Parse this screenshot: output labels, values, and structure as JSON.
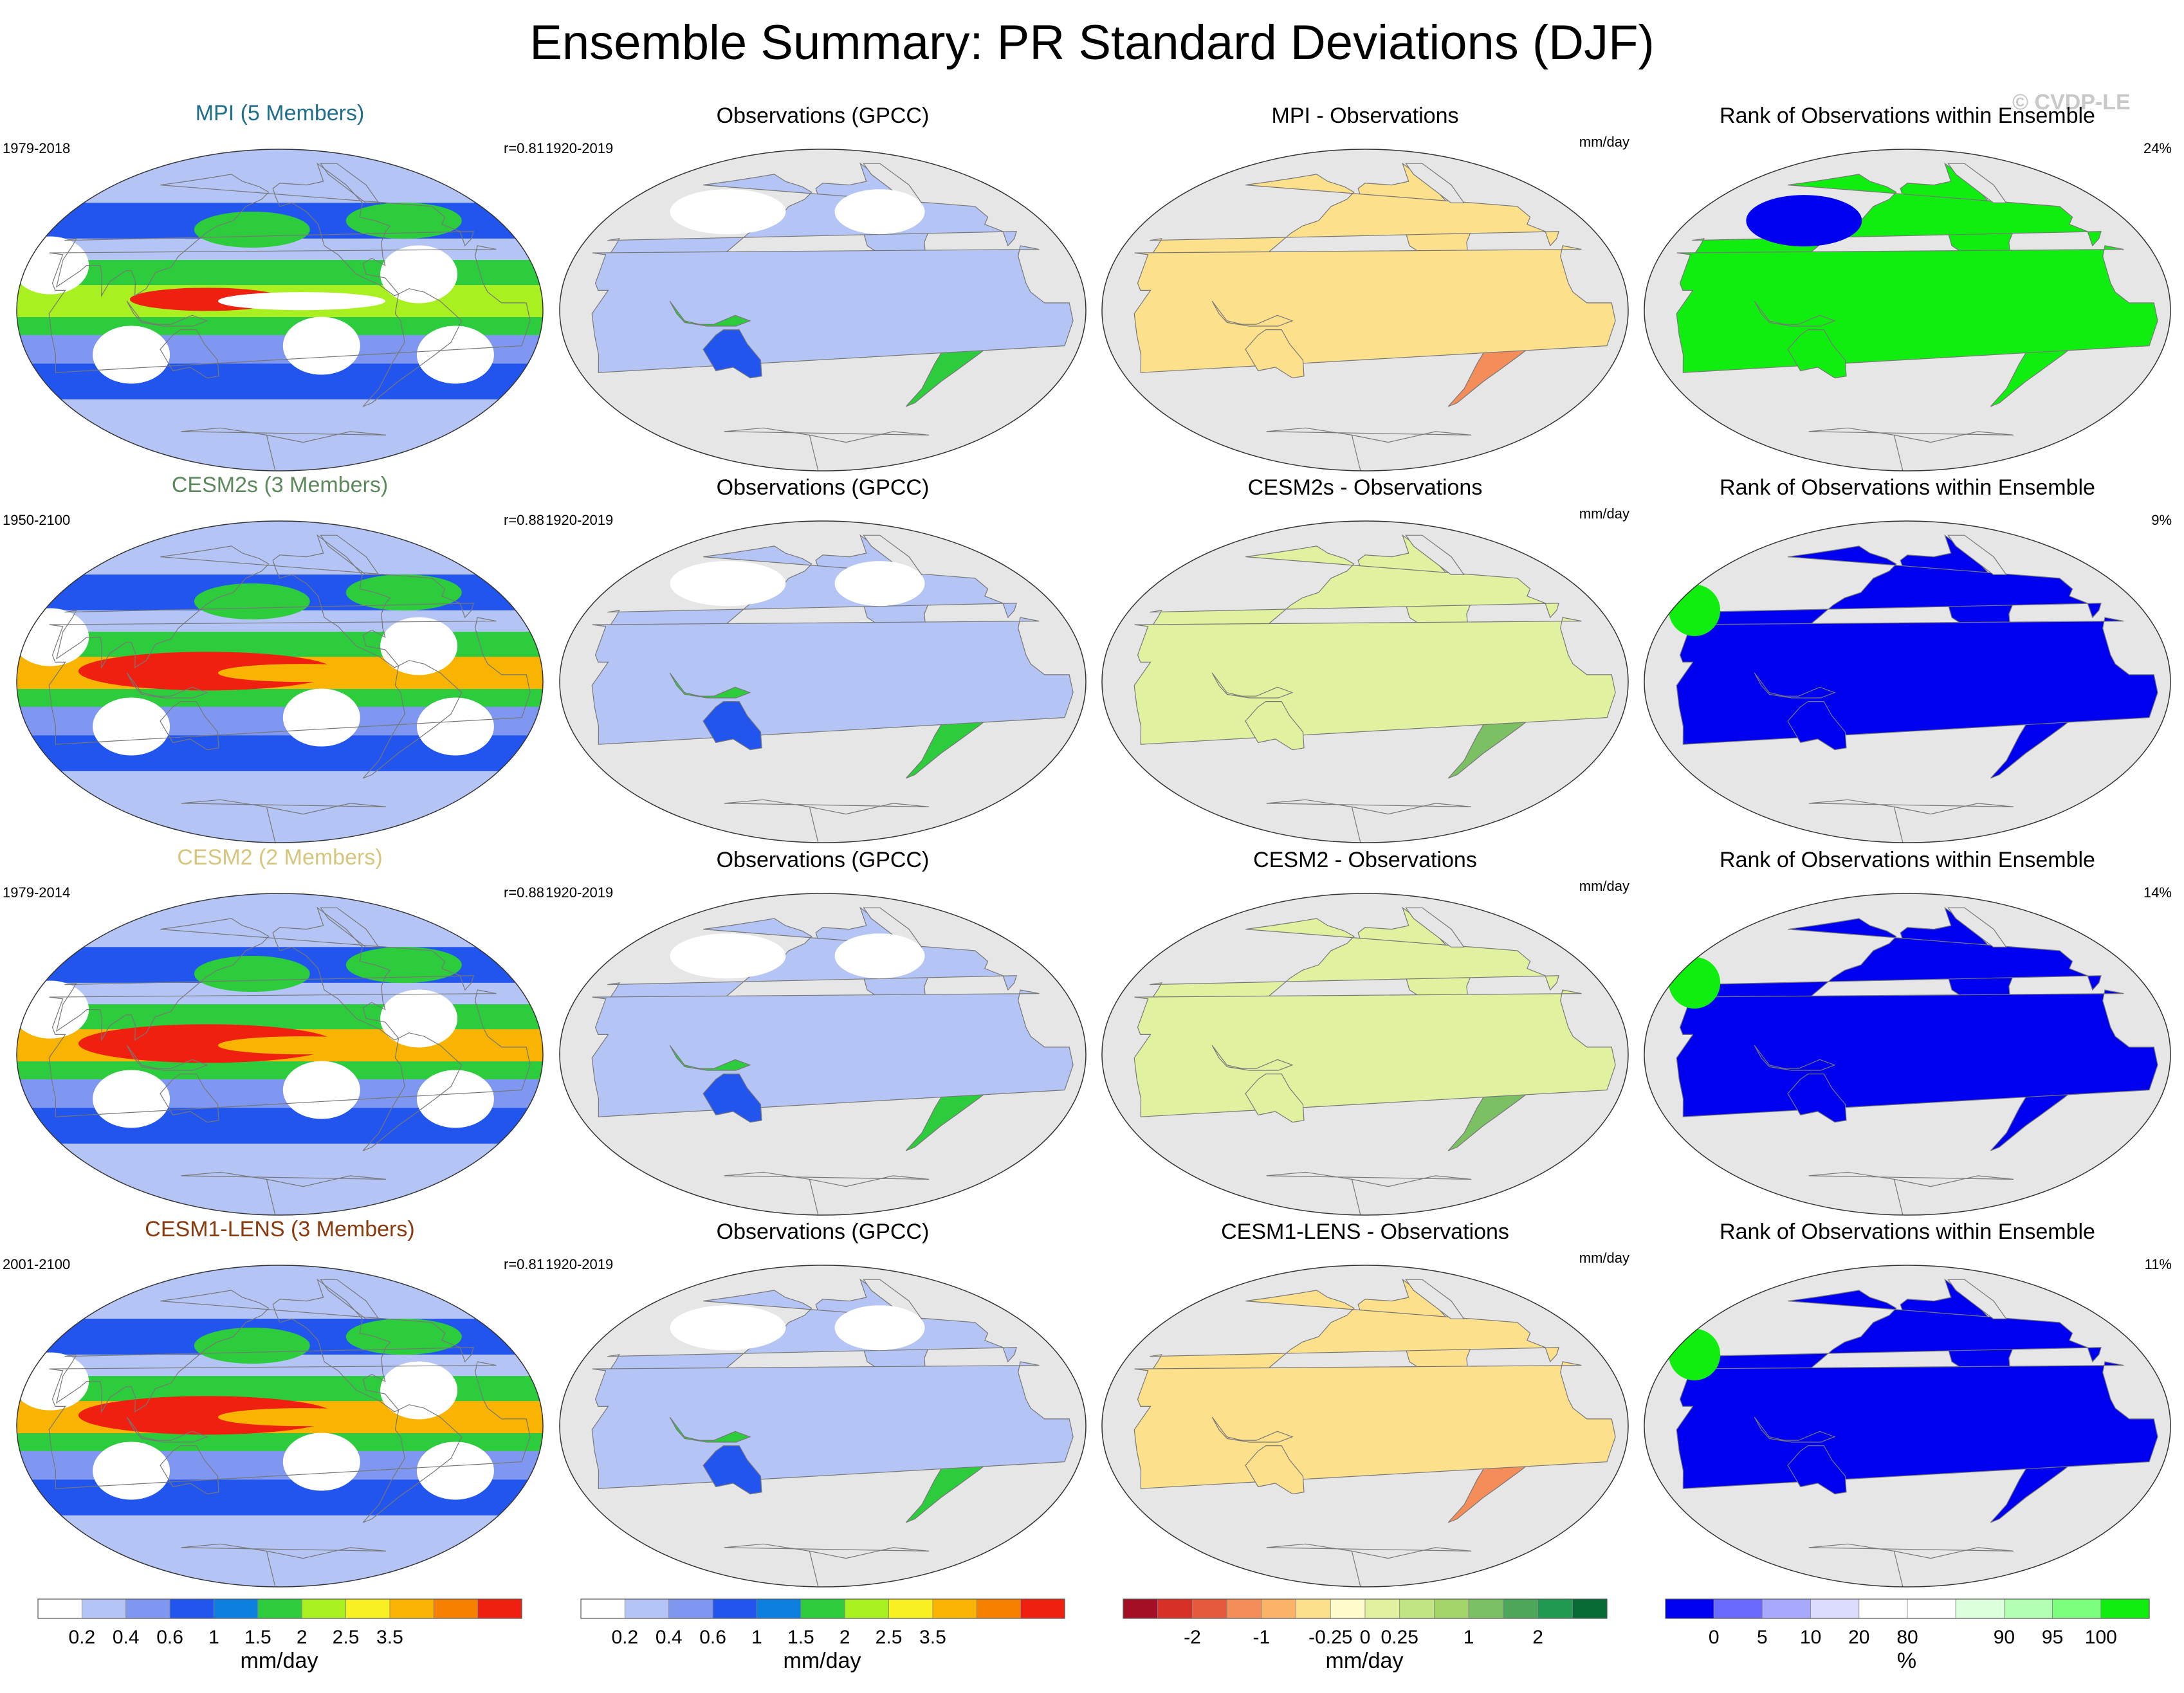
{
  "title": "Ensemble Summary: PR Standard Deviations (DJF)",
  "watermark": "© CVDP-LE",
  "rows": [
    {
      "model": {
        "title": "MPI (5 Members)",
        "color": "#1f6e8c",
        "years": "1979-2018",
        "corr": "r=0.81",
        "scheme": "mpi"
      },
      "obs": {
        "title": "Observations (GPCC)",
        "years": "1920-2019"
      },
      "diff": {
        "title": "MPI - Observations",
        "units": "mm/day",
        "scheme": "dry"
      },
      "rank": {
        "title": "Rank of Observations within Ensemble",
        "pct": "24%",
        "scheme": "mix"
      }
    },
    {
      "model": {
        "title": "CESM2s (3 Members)",
        "color": "#5d8a5d",
        "years": "1950-2100",
        "corr": "r=0.88",
        "scheme": "strong"
      },
      "obs": {
        "title": "Observations (GPCC)",
        "years": "1920-2019"
      },
      "diff": {
        "title": "CESM2s - Observations",
        "units": "mm/day",
        "scheme": "wet"
      },
      "rank": {
        "title": "Rank of Observations within Ensemble",
        "pct": "9%",
        "scheme": "blue"
      }
    },
    {
      "model": {
        "title": "CESM2 (2 Members)",
        "color": "#d6c57c",
        "years": "1979-2014",
        "corr": "r=0.88",
        "scheme": "strong"
      },
      "obs": {
        "title": "Observations (GPCC)",
        "years": "1920-2019"
      },
      "diff": {
        "title": "CESM2 - Observations",
        "units": "mm/day",
        "scheme": "wet"
      },
      "rank": {
        "title": "Rank of Observations within Ensemble",
        "pct": "14%",
        "scheme": "blue"
      }
    },
    {
      "model": {
        "title": "CESM1-LENS (3 Members)",
        "color": "#8b3a0e",
        "years": "2001-2100",
        "corr": "r=0.81",
        "scheme": "strong"
      },
      "obs": {
        "title": "Observations (GPCC)",
        "years": "1920-2019"
      },
      "diff": {
        "title": "CESM1-LENS - Observations",
        "units": "mm/day",
        "scheme": "dry"
      },
      "rank": {
        "title": "Rank of Observations within Ensemble",
        "pct": "11%",
        "scheme": "blue"
      }
    }
  ],
  "chart_data": [
    {
      "type": "heatmap",
      "name": "Model and observed PR standard deviation colorbar",
      "unit": "mm/day",
      "tick_labels": [
        "0.2",
        "0.4",
        "0.6",
        "1",
        "1.5",
        "2",
        "2.5",
        "3.5"
      ],
      "colors": [
        "#ffffff",
        "#b4c5f5",
        "#7f97f0",
        "#2255ee",
        "#0c7fe0",
        "#2ccc3c",
        "#a8f020",
        "#f8f020",
        "#f8b400",
        "#f88000",
        "#f02010"
      ]
    },
    {
      "type": "heatmap",
      "name": "Model minus observations colorbar",
      "unit": "mm/day",
      "tick_labels": [
        "-2",
        "-1",
        "-0.25",
        "0",
        "0.25",
        "1",
        "2"
      ],
      "colors": [
        "#a50f26",
        "#d73027",
        "#e55a3c",
        "#f48d59",
        "#fbb368",
        "#fde08b",
        "#fffccb",
        "#e0f2a0",
        "#c2e482",
        "#a2d46a",
        "#7bc063",
        "#4ca75a",
        "#219a50",
        "#066b36"
      ]
    },
    {
      "type": "heatmap",
      "name": "Rank of observations within ensemble colorbar",
      "unit": "%",
      "tick_labels": [
        "0",
        "5",
        "10",
        "20",
        "80",
        "90",
        "95",
        "100"
      ],
      "colors": [
        "#0000f0",
        "#6a6aff",
        "#a8a8ff",
        "#dcdcff",
        "#ffffff",
        "#ffffff",
        "#dcffdc",
        "#b4ffb4",
        "#7cff7c",
        "#10ee10"
      ]
    }
  ]
}
